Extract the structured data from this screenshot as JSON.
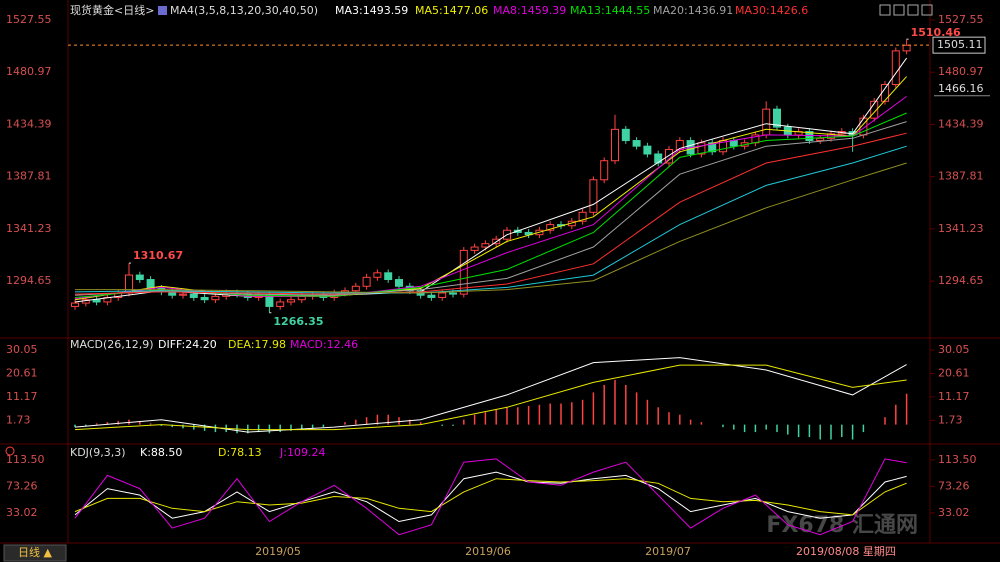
{
  "chart_data": [
    {
      "type": "candlestick",
      "title": "现货黄金<日线>",
      "indicator_label": "MA4(3,5,8,13,20,30,40,50)",
      "up_color": "#ff4242",
      "down_color": "#3fd2a2",
      "open": [
        1272,
        1275,
        1278,
        1276,
        1280,
        1284,
        1300,
        1296,
        1288,
        1285,
        1282,
        1283,
        1280,
        1278,
        1281,
        1284,
        1283,
        1280,
        1282,
        1272,
        1276,
        1278,
        1281,
        1282,
        1280,
        1284,
        1286,
        1290,
        1298,
        1302,
        1296,
        1290,
        1286,
        1282,
        1280,
        1284,
        1283,
        1322,
        1325,
        1328,
        1332,
        1340,
        1338,
        1336,
        1340,
        1345,
        1344,
        1348,
        1356,
        1385,
        1402,
        1430,
        1420,
        1415,
        1408,
        1400,
        1412,
        1420,
        1408,
        1418,
        1410,
        1420,
        1415,
        1418,
        1425,
        1448,
        1432,
        1425,
        1428,
        1420,
        1422,
        1426,
        1428,
        1425,
        1440,
        1455,
        1470,
        1500
      ],
      "high": [
        1278,
        1281,
        1281,
        1283,
        1287,
        1310.67,
        1303,
        1299,
        1291,
        1288,
        1286,
        1286,
        1283,
        1284,
        1287,
        1287,
        1286,
        1285,
        1285,
        1279,
        1281,
        1284,
        1285,
        1285,
        1287,
        1289,
        1293,
        1301,
        1305,
        1305,
        1299,
        1293,
        1289,
        1285,
        1287,
        1287,
        1325,
        1328,
        1331,
        1335,
        1343,
        1343,
        1341,
        1343,
        1348,
        1348,
        1351,
        1359,
        1388,
        1405,
        1443,
        1433,
        1423,
        1418,
        1411,
        1415,
        1423,
        1423,
        1421,
        1421,
        1423,
        1423,
        1421,
        1428,
        1455,
        1451,
        1435,
        1431,
        1431,
        1425,
        1429,
        1431,
        1431,
        1443,
        1458,
        1473,
        1503,
        1510.46
      ],
      "low": [
        1269,
        1272,
        1273,
        1273,
        1277,
        1281,
        1293,
        1285,
        1282,
        1279,
        1279,
        1277,
        1275,
        1275,
        1278,
        1280,
        1277,
        1277,
        1266.35,
        1269,
        1273,
        1275,
        1278,
        1277,
        1277,
        1281,
        1283,
        1287,
        1295,
        1293,
        1287,
        1283,
        1279,
        1277,
        1277,
        1280,
        1280,
        1319,
        1322,
        1325,
        1329,
        1335,
        1333,
        1333,
        1337,
        1341,
        1341,
        1345,
        1353,
        1382,
        1399,
        1417,
        1412,
        1405,
        1397,
        1397,
        1409,
        1405,
        1405,
        1407,
        1407,
        1412,
        1412,
        1415,
        1422,
        1429,
        1422,
        1422,
        1417,
        1417,
        1419,
        1423,
        1410,
        1422,
        1437,
        1452,
        1467,
        1497
      ],
      "close": [
        1275,
        1278,
        1276,
        1280,
        1284,
        1300,
        1296,
        1288,
        1285,
        1282,
        1283,
        1280,
        1278,
        1281,
        1284,
        1283,
        1280,
        1282,
        1272,
        1276,
        1278,
        1281,
        1282,
        1280,
        1284,
        1286,
        1290,
        1298,
        1302,
        1296,
        1290,
        1286,
        1282,
        1280,
        1284,
        1283,
        1322,
        1325,
        1328,
        1332,
        1340,
        1338,
        1336,
        1340,
        1345,
        1344,
        1348,
        1356,
        1385,
        1402,
        1430,
        1420,
        1415,
        1408,
        1400,
        1412,
        1420,
        1408,
        1418,
        1410,
        1420,
        1415,
        1418,
        1425,
        1448,
        1432,
        1425,
        1428,
        1420,
        1422,
        1426,
        1428,
        1425,
        1440,
        1455,
        1470,
        1500,
        1505
      ],
      "ylim": [
        1248.3,
        1527.55
      ],
      "yticks": [
        1294.65,
        1341.23,
        1387.81,
        1434.39,
        1480.97,
        1527.55
      ],
      "grid": false,
      "last_price": 1505.11,
      "cursor_price": 1466.16,
      "ma_x": [
        0,
        8,
        16,
        24,
        32,
        40,
        48,
        56,
        64,
        72,
        77
      ],
      "ma_lines": [
        {
          "name": "MA3:1493.59",
          "color": "#ffffff",
          "values": [
            1276,
            1286,
            1281,
            1282,
            1285,
            1336,
            1363,
            1413,
            1435,
            1426,
            1493.59
          ]
        },
        {
          "name": "MA5:1477.06",
          "color": "#f0f000",
          "values": [
            1278,
            1290,
            1281,
            1281,
            1288,
            1330,
            1352,
            1410,
            1430,
            1424,
            1477.06
          ]
        },
        {
          "name": "MA8:1459.39",
          "color": "#e000e0",
          "values": [
            1279,
            1289,
            1281,
            1281,
            1290,
            1320,
            1345,
            1412,
            1425,
            1424,
            1459.39
          ]
        },
        {
          "name": "MA13:1444.55",
          "color": "#00e000",
          "values": [
            1280,
            1287,
            1282,
            1281,
            1289,
            1305,
            1338,
            1405,
            1420,
            1424,
            1444.55
          ]
        },
        {
          "name": "MA20:1436.91",
          "color": "#a0a0a0",
          "values": [
            1282,
            1286,
            1283,
            1282,
            1287,
            1297,
            1325,
            1390,
            1415,
            1422,
            1436.91
          ]
        },
        {
          "name": "MA30:1426.6",
          "color": "#ff3030",
          "values": [
            1283,
            1285,
            1284,
            1283,
            1285,
            1292,
            1310,
            1365,
            1400,
            1415,
            1426.6
          ]
        },
        {
          "color": "#20c8d8",
          "values": [
            1285,
            1286,
            1285,
            1284,
            1284,
            1289,
            1300,
            1345,
            1380,
            1400,
            1415
          ]
        },
        {
          "color": "#909020",
          "values": [
            1287,
            1287,
            1286,
            1285,
            1284,
            1287,
            1295,
            1330,
            1360,
            1385,
            1400
          ]
        }
      ],
      "x_labels": [
        "2019/05",
        "2019/06",
        "2019/07",
        "2019/08/08 星期四"
      ]
    },
    {
      "type": "macd",
      "title": "MACD(26,12,9)",
      "ylim": [
        -7,
        33.3
      ],
      "yticks": [
        1.73,
        11.17,
        20.61,
        30.05
      ],
      "histogram": {
        "name": "MACD:12.46",
        "color": "#e000e0",
        "up_color": "#ff4242",
        "down_color": "#3fd2a2",
        "values": [
          -1,
          -0.5,
          0.5,
          1,
          1.5,
          2,
          1.5,
          0.5,
          -0.5,
          -1,
          -1.5,
          -2,
          -2.5,
          -3,
          -3,
          -3.5,
          -3.5,
          -3,
          -3.5,
          -3,
          -2.5,
          -2,
          -1.5,
          -1,
          0,
          1,
          2,
          3,
          4,
          4,
          3,
          2,
          1,
          0,
          -0.5,
          -0.5,
          2,
          4,
          5,
          6,
          7,
          7,
          7.5,
          8,
          8.5,
          8.5,
          9,
          10,
          13,
          16,
          18,
          16,
          13,
          10,
          7,
          5,
          4,
          2,
          1,
          0,
          -1,
          -2,
          -3,
          -3,
          -2,
          -3,
          -4,
          -5,
          -5,
          -6,
          -6,
          -5,
          -6,
          -3,
          0,
          3,
          8,
          12.46
        ]
      },
      "x": [
        0,
        8,
        16,
        24,
        32,
        40,
        48,
        56,
        64,
        72,
        77
      ],
      "series": [
        {
          "name": "DIFF:24.20",
          "color": "#ffffff",
          "values": [
            -1,
            2,
            -3,
            -1,
            2,
            12,
            25,
            27,
            22,
            12,
            24.2
          ]
        },
        {
          "name": "DEA:17.98",
          "color": "#e8e800",
          "values": [
            -2,
            0,
            -2,
            -2,
            0,
            7,
            17,
            24,
            24,
            15,
            17.98
          ]
        }
      ]
    },
    {
      "type": "line",
      "title": "KDJ(9,3,3)",
      "ylim": [
        -8,
        133
      ],
      "yticks": [
        {
          "value": 33.02,
          "label": "33.02"
        },
        {
          "value": 73.26,
          "label": "73.26"
        },
        {
          "value": 113.5,
          "label": "113.50"
        }
      ],
      "x": [
        0,
        3,
        6,
        9,
        12,
        15,
        18,
        21,
        24,
        27,
        30,
        33,
        36,
        39,
        42,
        45,
        48,
        51,
        54,
        57,
        60,
        63,
        66,
        69,
        72,
        75,
        77
      ],
      "series": [
        {
          "name": "K:88.50",
          "color": "#ffffff",
          "values": [
            30,
            70,
            60,
            25,
            35,
            65,
            35,
            50,
            65,
            50,
            20,
            30,
            85,
            95,
            80,
            78,
            85,
            90,
            70,
            35,
            45,
            55,
            35,
            25,
            30,
            80,
            88.5
          ]
        },
        {
          "name": "D:78.13",
          "color": "#e8e800",
          "values": [
            35,
            55,
            55,
            40,
            35,
            50,
            45,
            48,
            58,
            55,
            40,
            35,
            65,
            85,
            82,
            80,
            82,
            85,
            78,
            55,
            50,
            52,
            45,
            35,
            30,
            65,
            78.13
          ]
        },
        {
          "name": "J:109.24",
          "color": "#e000e0",
          "values": [
            25,
            90,
            70,
            10,
            25,
            85,
            20,
            50,
            75,
            40,
            0,
            15,
            110,
            115,
            80,
            75,
            95,
            110,
            60,
            10,
            40,
            60,
            15,
            0,
            20,
            115,
            109.24
          ]
        }
      ]
    }
  ],
  "ui": {
    "period_tab": "日线 ▲",
    "watermark": "FX678 汇通网"
  }
}
